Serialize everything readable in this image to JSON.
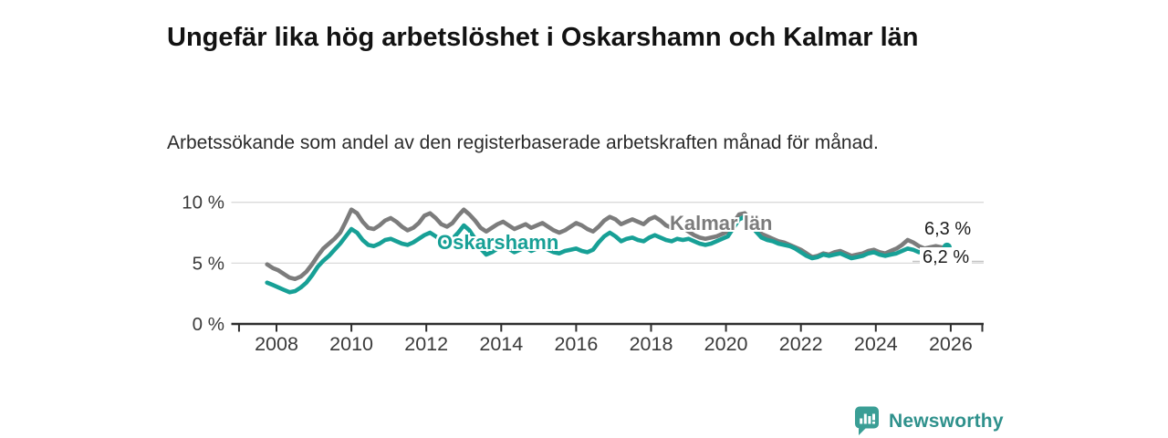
{
  "title": "Ungefär lika hög arbetslöshet i Oskarshamn och Kalmar län",
  "subtitle": "Arbetssökande som andel av den registerbaserade arbetskraften månad för månad.",
  "branding": {
    "logo_text": "Newsworthy",
    "logo_color": "#2f918c",
    "logo_icon": "speech-bubble-bar-chart"
  },
  "colors": {
    "oskarshamn_teal": "#17a096",
    "kalmar_gray": "#7c7c7c",
    "axis": "#2e2e2e",
    "gridline": "#dadada",
    "tick_text": "#3a3a3a",
    "leader_line": "#c4c4c4"
  },
  "chart_data": {
    "type": "line",
    "title": "Ungefär lika hög arbetslöshet i Oskarshamn och Kalmar län",
    "subtitle": "Arbetssökande som andel av den registerbaserade arbetskraften månad för månad.",
    "xlabel": "",
    "ylabel": "",
    "unit": "%",
    "grid": "horizontal",
    "xlim": [
      2006.8,
      2026.85
    ],
    "ylim": [
      0,
      10.5
    ],
    "x_ticks": [
      2008,
      2010,
      2012,
      2014,
      2016,
      2018,
      2020,
      2022,
      2024,
      2026
    ],
    "y_ticks": [
      {
        "value": 0,
        "label": "0 %"
      },
      {
        "value": 5,
        "label": "5 %"
      },
      {
        "value": 10,
        "label": "10 %"
      }
    ],
    "legend_position": "inline-labels",
    "series": [
      {
        "name": "Kalmar län",
        "color": "#7c7c7c",
        "end_label": "6,2 %",
        "end_value": 6.2,
        "end_dot": false,
        "points": [
          [
            2007.75,
            4.9
          ],
          [
            2007.9,
            4.6
          ],
          [
            2008.05,
            4.4
          ],
          [
            2008.2,
            4.1
          ],
          [
            2008.35,
            3.8
          ],
          [
            2008.5,
            3.7
          ],
          [
            2008.65,
            3.9
          ],
          [
            2008.8,
            4.3
          ],
          [
            2008.95,
            4.9
          ],
          [
            2009.1,
            5.6
          ],
          [
            2009.25,
            6.2
          ],
          [
            2009.4,
            6.6
          ],
          [
            2009.55,
            7.0
          ],
          [
            2009.7,
            7.5
          ],
          [
            2009.85,
            8.4
          ],
          [
            2010.0,
            9.4
          ],
          [
            2010.15,
            9.1
          ],
          [
            2010.3,
            8.4
          ],
          [
            2010.45,
            7.9
          ],
          [
            2010.6,
            7.8
          ],
          [
            2010.75,
            8.1
          ],
          [
            2010.9,
            8.5
          ],
          [
            2011.05,
            8.7
          ],
          [
            2011.2,
            8.4
          ],
          [
            2011.35,
            8.0
          ],
          [
            2011.5,
            7.7
          ],
          [
            2011.65,
            7.9
          ],
          [
            2011.8,
            8.3
          ],
          [
            2011.95,
            8.9
          ],
          [
            2012.1,
            9.1
          ],
          [
            2012.25,
            8.7
          ],
          [
            2012.4,
            8.2
          ],
          [
            2012.55,
            8.0
          ],
          [
            2012.7,
            8.3
          ],
          [
            2012.85,
            8.9
          ],
          [
            2013.0,
            9.4
          ],
          [
            2013.15,
            9.0
          ],
          [
            2013.3,
            8.5
          ],
          [
            2013.45,
            7.9
          ],
          [
            2013.6,
            7.6
          ],
          [
            2013.75,
            7.9
          ],
          [
            2013.9,
            8.2
          ],
          [
            2014.05,
            8.4
          ],
          [
            2014.2,
            8.1
          ],
          [
            2014.35,
            7.8
          ],
          [
            2014.5,
            8.0
          ],
          [
            2014.65,
            8.2
          ],
          [
            2014.8,
            7.9
          ],
          [
            2014.95,
            8.1
          ],
          [
            2015.1,
            8.3
          ],
          [
            2015.25,
            8.0
          ],
          [
            2015.4,
            7.7
          ],
          [
            2015.55,
            7.5
          ],
          [
            2015.7,
            7.7
          ],
          [
            2015.85,
            8.0
          ],
          [
            2016.0,
            8.3
          ],
          [
            2016.15,
            8.1
          ],
          [
            2016.3,
            7.8
          ],
          [
            2016.45,
            7.6
          ],
          [
            2016.6,
            8.0
          ],
          [
            2016.75,
            8.5
          ],
          [
            2016.9,
            8.8
          ],
          [
            2017.05,
            8.6
          ],
          [
            2017.2,
            8.2
          ],
          [
            2017.35,
            8.4
          ],
          [
            2017.5,
            8.6
          ],
          [
            2017.65,
            8.4
          ],
          [
            2017.8,
            8.2
          ],
          [
            2017.95,
            8.6
          ],
          [
            2018.1,
            8.8
          ],
          [
            2018.25,
            8.5
          ],
          [
            2018.4,
            8.1
          ],
          [
            2018.55,
            7.9
          ],
          [
            2018.7,
            8.1
          ],
          [
            2018.85,
            7.9
          ],
          [
            2019.0,
            7.6
          ],
          [
            2019.15,
            7.3
          ],
          [
            2019.3,
            7.1
          ],
          [
            2019.45,
            7.0
          ],
          [
            2019.6,
            7.1
          ],
          [
            2019.75,
            7.2
          ],
          [
            2019.9,
            7.4
          ],
          [
            2020.05,
            7.6
          ],
          [
            2020.2,
            8.3
          ],
          [
            2020.35,
            9.0
          ],
          [
            2020.5,
            9.1
          ],
          [
            2020.65,
            8.6
          ],
          [
            2020.8,
            7.9
          ],
          [
            2020.95,
            7.4
          ],
          [
            2021.1,
            7.2
          ],
          [
            2021.25,
            7.0
          ],
          [
            2021.4,
            6.8
          ],
          [
            2021.55,
            6.7
          ],
          [
            2021.7,
            6.5
          ],
          [
            2021.85,
            6.3
          ],
          [
            2022.0,
            6.1
          ],
          [
            2022.15,
            5.8
          ],
          [
            2022.3,
            5.5
          ],
          [
            2022.45,
            5.6
          ],
          [
            2022.6,
            5.8
          ],
          [
            2022.75,
            5.7
          ],
          [
            2022.9,
            5.9
          ],
          [
            2023.05,
            6.0
          ],
          [
            2023.2,
            5.8
          ],
          [
            2023.35,
            5.6
          ],
          [
            2023.5,
            5.7
          ],
          [
            2023.65,
            5.8
          ],
          [
            2023.8,
            6.0
          ],
          [
            2023.95,
            6.1
          ],
          [
            2024.1,
            5.9
          ],
          [
            2024.25,
            5.8
          ],
          [
            2024.4,
            6.0
          ],
          [
            2024.55,
            6.2
          ],
          [
            2024.7,
            6.5
          ],
          [
            2024.85,
            6.9
          ],
          [
            2025.0,
            6.7
          ],
          [
            2025.15,
            6.4
          ],
          [
            2025.3,
            6.2
          ],
          [
            2025.45,
            6.3
          ],
          [
            2025.6,
            6.4
          ],
          [
            2025.75,
            6.3
          ],
          [
            2025.9,
            6.2
          ]
        ]
      },
      {
        "name": "Oskarshamn",
        "color": "#17a096",
        "end_label": "6,3 %",
        "end_value": 6.3,
        "end_dot": true,
        "points": [
          [
            2007.75,
            3.4
          ],
          [
            2007.9,
            3.2
          ],
          [
            2008.05,
            3.0
          ],
          [
            2008.2,
            2.8
          ],
          [
            2008.35,
            2.6
          ],
          [
            2008.5,
            2.7
          ],
          [
            2008.65,
            3.0
          ],
          [
            2008.8,
            3.4
          ],
          [
            2008.95,
            4.0
          ],
          [
            2009.1,
            4.7
          ],
          [
            2009.25,
            5.2
          ],
          [
            2009.4,
            5.6
          ],
          [
            2009.55,
            6.1
          ],
          [
            2009.7,
            6.6
          ],
          [
            2009.85,
            7.2
          ],
          [
            2010.0,
            7.8
          ],
          [
            2010.15,
            7.5
          ],
          [
            2010.3,
            6.9
          ],
          [
            2010.45,
            6.5
          ],
          [
            2010.6,
            6.4
          ],
          [
            2010.75,
            6.6
          ],
          [
            2010.9,
            6.9
          ],
          [
            2011.05,
            7.0
          ],
          [
            2011.2,
            6.8
          ],
          [
            2011.35,
            6.6
          ],
          [
            2011.5,
            6.5
          ],
          [
            2011.65,
            6.7
          ],
          [
            2011.8,
            7.0
          ],
          [
            2011.95,
            7.3
          ],
          [
            2012.1,
            7.5
          ],
          [
            2012.25,
            7.2
          ],
          [
            2012.4,
            6.9
          ],
          [
            2012.55,
            6.7
          ],
          [
            2012.7,
            7.0
          ],
          [
            2012.85,
            7.5
          ],
          [
            2013.0,
            8.1
          ],
          [
            2013.15,
            7.7
          ],
          [
            2013.3,
            7.0
          ],
          [
            2013.45,
            6.2
          ],
          [
            2013.6,
            5.7
          ],
          [
            2013.75,
            5.9
          ],
          [
            2013.9,
            6.2
          ],
          [
            2014.05,
            6.5
          ],
          [
            2014.2,
            6.2
          ],
          [
            2014.35,
            5.9
          ],
          [
            2014.5,
            6.1
          ],
          [
            2014.65,
            6.3
          ],
          [
            2014.8,
            6.0
          ],
          [
            2014.95,
            6.2
          ],
          [
            2015.1,
            6.3
          ],
          [
            2015.25,
            6.1
          ],
          [
            2015.4,
            5.9
          ],
          [
            2015.55,
            5.8
          ],
          [
            2015.7,
            6.0
          ],
          [
            2015.85,
            6.1
          ],
          [
            2016.0,
            6.2
          ],
          [
            2016.15,
            6.0
          ],
          [
            2016.3,
            5.9
          ],
          [
            2016.45,
            6.1
          ],
          [
            2016.6,
            6.7
          ],
          [
            2016.75,
            7.2
          ],
          [
            2016.9,
            7.5
          ],
          [
            2017.05,
            7.2
          ],
          [
            2017.2,
            6.8
          ],
          [
            2017.35,
            7.0
          ],
          [
            2017.5,
            7.1
          ],
          [
            2017.65,
            6.9
          ],
          [
            2017.8,
            6.8
          ],
          [
            2017.95,
            7.1
          ],
          [
            2018.1,
            7.3
          ],
          [
            2018.25,
            7.1
          ],
          [
            2018.4,
            6.9
          ],
          [
            2018.55,
            6.8
          ],
          [
            2018.7,
            7.0
          ],
          [
            2018.85,
            6.9
          ],
          [
            2019.0,
            7.0
          ],
          [
            2019.15,
            6.8
          ],
          [
            2019.3,
            6.6
          ],
          [
            2019.45,
            6.5
          ],
          [
            2019.6,
            6.6
          ],
          [
            2019.75,
            6.8
          ],
          [
            2019.9,
            7.0
          ],
          [
            2020.05,
            7.2
          ],
          [
            2020.2,
            7.9
          ],
          [
            2020.35,
            8.6
          ],
          [
            2020.5,
            8.8
          ],
          [
            2020.65,
            8.2
          ],
          [
            2020.8,
            7.6
          ],
          [
            2020.95,
            7.1
          ],
          [
            2021.1,
            6.9
          ],
          [
            2021.25,
            6.8
          ],
          [
            2021.4,
            6.6
          ],
          [
            2021.55,
            6.5
          ],
          [
            2021.7,
            6.4
          ],
          [
            2021.85,
            6.2
          ],
          [
            2022.0,
            5.9
          ],
          [
            2022.15,
            5.6
          ],
          [
            2022.3,
            5.4
          ],
          [
            2022.45,
            5.5
          ],
          [
            2022.6,
            5.7
          ],
          [
            2022.75,
            5.6
          ],
          [
            2022.9,
            5.7
          ],
          [
            2023.05,
            5.8
          ],
          [
            2023.2,
            5.6
          ],
          [
            2023.35,
            5.4
          ],
          [
            2023.5,
            5.5
          ],
          [
            2023.65,
            5.6
          ],
          [
            2023.8,
            5.8
          ],
          [
            2023.95,
            5.9
          ],
          [
            2024.1,
            5.7
          ],
          [
            2024.25,
            5.6
          ],
          [
            2024.4,
            5.7
          ],
          [
            2024.55,
            5.8
          ],
          [
            2024.7,
            6.0
          ],
          [
            2024.85,
            6.2
          ],
          [
            2025.0,
            6.1
          ],
          [
            2025.15,
            5.9
          ],
          [
            2025.3,
            6.0
          ],
          [
            2025.45,
            6.1
          ],
          [
            2025.6,
            6.0
          ],
          [
            2025.75,
            6.1
          ],
          [
            2025.9,
            6.3
          ]
        ]
      }
    ]
  }
}
